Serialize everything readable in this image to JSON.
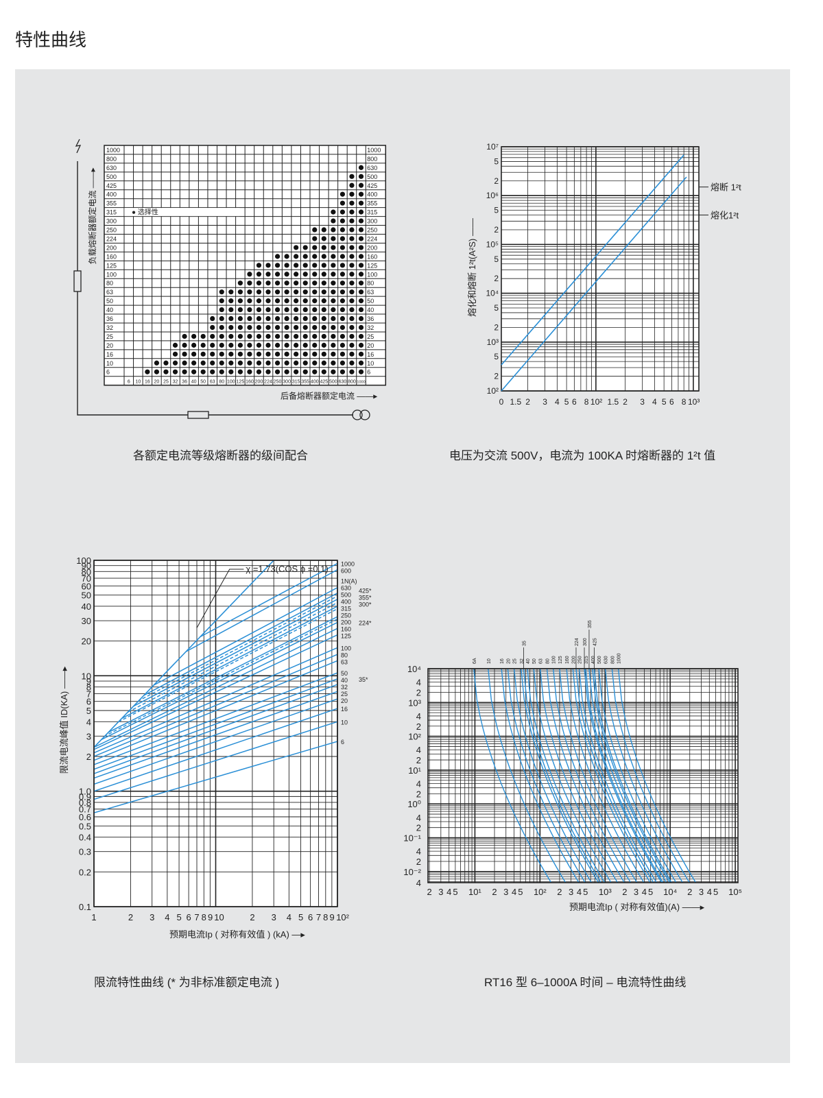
{
  "page_title": "特性曲线",
  "chart_data": [
    {
      "type": "table",
      "id": "selectivity",
      "caption": "各额定电流等级熔断器的级间配合",
      "ylabel": "负载熔断器额定电流",
      "xlabel": "后备熔断器额定电流",
      "legend": "● 选择性",
      "rows": [
        "1000",
        "800",
        "630",
        "500",
        "425",
        "400",
        "355",
        "315",
        "300",
        "250",
        "224",
        "200",
        "160",
        "125",
        "100",
        "80",
        "63",
        "50",
        "40",
        "36",
        "32",
        "25",
        "20",
        "16",
        "10",
        "6"
      ],
      "columns": [
        "6",
        "10",
        "16",
        "20",
        "25",
        "32",
        "36",
        "40",
        "50",
        "63",
        "80",
        "100",
        "125",
        "160",
        "200",
        "224",
        "250",
        "300",
        "315",
        "355",
        "400",
        "425",
        "500",
        "630",
        "800",
        "1000"
      ],
      "first_selective_column_per_row": [
        null,
        null,
        25,
        24,
        24,
        23,
        23,
        22,
        22,
        20,
        20,
        18,
        16,
        14,
        13,
        12,
        10,
        10,
        10,
        9,
        9,
        6,
        5,
        5,
        3,
        2
      ]
    },
    {
      "type": "line",
      "id": "i2t",
      "caption": "电压为交流 500V，电流为 100KA 时熔断器的 1²t 值",
      "ylabel": "熔化和熔断 1²t(A²S)",
      "xscale": "log",
      "yscale": "log",
      "xlim": [
        10.7,
        1140
      ],
      "ylim": [
        100,
        10000000
      ],
      "yticks": [
        {
          "v": 10000000,
          "t": "10⁷"
        },
        {
          "v": 5000000,
          "t": "5"
        },
        {
          "v": 2000000,
          "t": "2"
        },
        {
          "v": 1000000,
          "t": "10⁶"
        },
        {
          "v": 500000,
          "t": "5"
        },
        {
          "v": 200000,
          "t": "2"
        },
        {
          "v": 100000,
          "t": "10⁵"
        },
        {
          "v": 50000,
          "t": "5"
        },
        {
          "v": 20000,
          "t": "2"
        },
        {
          "v": 10000,
          "t": "10⁴"
        },
        {
          "v": 5000,
          "t": "5"
        },
        {
          "v": 2000,
          "t": "2"
        },
        {
          "v": 1000,
          "t": "10³"
        },
        {
          "v": 500,
          "t": "5"
        },
        {
          "v": 200,
          "t": "2"
        },
        {
          "v": 100,
          "t": "10²"
        }
      ],
      "xticks": [
        {
          "v": 10.7,
          "t": "0"
        },
        {
          "v": 15,
          "t": "1.5"
        },
        {
          "v": 20,
          "t": "2"
        },
        {
          "v": 30,
          "t": "3"
        },
        {
          "v": 40,
          "t": "4"
        },
        {
          "v": 50,
          "t": "5"
        },
        {
          "v": 60,
          "t": "6"
        },
        {
          "v": 80,
          "t": "8"
        },
        {
          "v": 100,
          "t": "10²"
        },
        {
          "v": 150,
          "t": "1.5"
        },
        {
          "v": 200,
          "t": "2"
        },
        {
          "v": 300,
          "t": "3"
        },
        {
          "v": 400,
          "t": "4"
        },
        {
          "v": 500,
          "t": "5"
        },
        {
          "v": 600,
          "t": "6"
        },
        {
          "v": 800,
          "t": "8"
        },
        {
          "v": 1000,
          "t": "10³"
        }
      ],
      "series": [
        {
          "name": "熔断 1²t",
          "x": [
            10.7,
            800
          ],
          "y": [
            340,
            6800000
          ],
          "label_y": 1500000
        },
        {
          "name": "熔化1²t",
          "x": [
            10.7,
            850
          ],
          "y": [
            100,
            2400000
          ],
          "label_y": 400000
        }
      ],
      "color": "#2a8fd6"
    },
    {
      "type": "line",
      "id": "cut_off",
      "caption": "限流特性曲线 (* 为非标准额定电流 )",
      "ylabel": "限流电流峰值 ID(KA)",
      "xlabel": "预期电流Ip ( 对称有效值 ) (kA)",
      "annotation": "χ =1.73(COS ϕ =0.1)",
      "xscale": "log",
      "yscale": "log",
      "xlim": [
        1,
        100
      ],
      "ylim": [
        0.1,
        100
      ],
      "yticks": [
        "100",
        "90",
        "80",
        "70",
        "60",
        "50",
        "40",
        "30",
        "20",
        "10",
        "9",
        "8",
        "7",
        "6",
        "5",
        "4",
        "3",
        "2",
        "1.0",
        "0.9",
        "0.8",
        "0.7",
        "0.6",
        "0.5",
        "0.4",
        "0.3",
        "0.2",
        "0.1"
      ],
      "ytick_values": [
        100,
        90,
        80,
        70,
        60,
        50,
        40,
        30,
        20,
        10,
        9,
        8,
        7,
        6,
        5,
        4,
        3,
        2,
        1,
        0.9,
        0.8,
        0.7,
        0.6,
        0.5,
        0.4,
        0.3,
        0.2,
        0.1
      ],
      "xticks": [
        "1",
        "2",
        "3",
        "4",
        "5",
        "6",
        "7",
        "8",
        "9",
        "10",
        "2",
        "3",
        "4",
        "5",
        "6",
        "7",
        "8",
        "9",
        "10²"
      ],
      "xtick_values": [
        1,
        2,
        3,
        4,
        5,
        6,
        7,
        8,
        9,
        10,
        20,
        30,
        40,
        50,
        60,
        70,
        80,
        90,
        100
      ],
      "envelope": {
        "x": [
          1,
          30
        ],
        "y": [
          2.4,
          100
        ]
      },
      "series": [
        {
          "name": "6",
          "y_start": 0.65,
          "y_end": 2.7
        },
        {
          "name": "10",
          "y_start": 0.85,
          "y_end": 4.0
        },
        {
          "name": "16",
          "y_start": 1.0,
          "y_end": 5.2
        },
        {
          "name": "20",
          "y_start": 1.15,
          "y_end": 6.3
        },
        {
          "name": "25",
          "y_start": 1.3,
          "y_end": 7.3
        },
        {
          "name": "32",
          "y_start": 1.42,
          "y_end": 8.4
        },
        {
          "name": "40",
          "y_start": 1.55,
          "y_end": 9.4
        },
        {
          "name": "50",
          "y_start": 1.7,
          "y_end": 10.6
        },
        {
          "name": "63",
          "y_start": 1.85,
          "y_end": 13.5
        },
        {
          "name": "80",
          "y_start": 2.0,
          "y_end": 15.3
        },
        {
          "name": "100",
          "y_start": 2.15,
          "y_end": 17.5
        },
        {
          "name": "125",
          "y_start": 2.3,
          "y_end": 22.6
        },
        {
          "name": "160",
          "y_start": 2.4,
          "y_end": 25.7
        },
        {
          "name": "200",
          "y_start": 2.6,
          "y_end": 29
        },
        {
          "name": "250",
          "y_start": 2.8,
          "y_end": 32.5
        },
        {
          "name": "315",
          "y_start": 3.2,
          "y_end": 40
        },
        {
          "name": "400",
          "y_start": 3.6,
          "y_end": 46
        },
        {
          "name": "500",
          "y_start": 4.0,
          "y_end": 52
        },
        {
          "name": "630",
          "y_start": 4.4,
          "y_end": 58
        },
        {
          "name": "600",
          "y_start": 6.0,
          "y_end": 83
        },
        {
          "name": "1000",
          "y_start": 7.0,
          "y_end": 94
        },
        {
          "name": "224*",
          "y_start": 2.7,
          "y_end": 31,
          "dashed": true
        },
        {
          "name": "300*",
          "y_start": 3.1,
          "y_end": 38,
          "dashed": true
        },
        {
          "name": "355*",
          "y_start": 3.4,
          "y_end": 43,
          "dashed": true
        },
        {
          "name": "425*",
          "y_start": 3.8,
          "y_end": 49,
          "dashed": true
        }
      ],
      "right_labels": [
        {
          "t": "1000",
          "v": 94
        },
        {
          "t": "600",
          "v": 83
        },
        {
          "t": "1N(A)",
          "v": 67
        },
        {
          "t": "630",
          "v": 60
        },
        {
          "t": "500",
          "v": 54
        },
        {
          "t": "400",
          "v": 48
        },
        {
          "t": "315",
          "v": 42
        },
        {
          "t": "250",
          "v": 34
        },
        {
          "t": "200",
          "v": 30
        },
        {
          "t": "160",
          "v": 26.5
        },
        {
          "t": "125",
          "v": 23
        },
        {
          "t": "100",
          "v": 17.5
        },
        {
          "t": "80",
          "v": 15.3
        },
        {
          "t": "63",
          "v": 13.5
        },
        {
          "t": "50",
          "v": 10.6
        },
        {
          "t": "40",
          "v": 9.4
        },
        {
          "t": "32",
          "v": 8.4
        },
        {
          "t": "25",
          "v": 7.3
        },
        {
          "t": "20",
          "v": 6.3
        },
        {
          "t": "16",
          "v": 5.2
        },
        {
          "t": "10",
          "v": 4.0
        },
        {
          "t": "6",
          "v": 2.7
        }
      ],
      "right_labels_2": [
        {
          "t": "425*",
          "v": 55
        },
        {
          "t": "355*",
          "v": 48
        },
        {
          "t": "300*",
          "v": 42
        },
        {
          "t": "224*",
          "v": 29
        },
        {
          "t": "35*",
          "v": 9.4
        }
      ],
      "color": "#2a8fd6"
    },
    {
      "type": "line",
      "id": "time_current",
      "caption": "RT16 型 6–1000A 时间 – 电流特性曲线",
      "xlabel": "预期电流Ip ( 对称有效值)(A)",
      "xscale": "log",
      "yscale": "log",
      "xlim": [
        1.9,
        110000
      ],
      "ylim": [
        0.0047,
        10000
      ],
      "yticks": [
        {
          "v": 10000,
          "t": "10⁴"
        },
        {
          "v": 4000,
          "t": "4"
        },
        {
          "v": 2000,
          "t": "2"
        },
        {
          "v": 1000,
          "t": "10³"
        },
        {
          "v": 400,
          "t": "4"
        },
        {
          "v": 200,
          "t": "2"
        },
        {
          "v": 100,
          "t": "10²"
        },
        {
          "v": 40,
          "t": "4"
        },
        {
          "v": 20,
          "t": "2"
        },
        {
          "v": 10,
          "t": "10¹"
        },
        {
          "v": 4,
          "t": "4"
        },
        {
          "v": 2,
          "t": "2"
        },
        {
          "v": 1,
          "t": "10⁰"
        },
        {
          "v": 0.4,
          "t": "4"
        },
        {
          "v": 0.2,
          "t": "2"
        },
        {
          "v": 0.1,
          "t": "10⁻¹"
        },
        {
          "v": 0.04,
          "t": "4"
        },
        {
          "v": 0.02,
          "t": "2"
        },
        {
          "v": 0.01,
          "t": "10⁻²"
        },
        {
          "v": 0.0047,
          "t": "4"
        }
      ],
      "xticks": [
        {
          "v": 2,
          "t": "2"
        },
        {
          "v": 3,
          "t": "3"
        },
        {
          "v": 4,
          "t": "4"
        },
        {
          "v": 5,
          "t": "5"
        },
        {
          "v": 10,
          "t": "10¹"
        },
        {
          "v": 20,
          "t": "2"
        },
        {
          "v": 30,
          "t": "3"
        },
        {
          "v": 40,
          "t": "4"
        },
        {
          "v": 50,
          "t": "5"
        },
        {
          "v": 100,
          "t": "10²"
        },
        {
          "v": 200,
          "t": "2"
        },
        {
          "v": 300,
          "t": "3"
        },
        {
          "v": 400,
          "t": "4"
        },
        {
          "v": 500,
          "t": "5"
        },
        {
          "v": 1000,
          "t": "10³"
        },
        {
          "v": 2000,
          "t": "2"
        },
        {
          "v": 3000,
          "t": "3"
        },
        {
          "v": 4000,
          "t": "4"
        },
        {
          "v": 5000,
          "t": "5"
        },
        {
          "v": 10000,
          "t": "10⁴"
        },
        {
          "v": 20000,
          "t": "2"
        },
        {
          "v": 30000,
          "t": "3"
        },
        {
          "v": 40000,
          "t": "4"
        },
        {
          "v": 50000,
          "t": "5"
        },
        {
          "v": 100000,
          "t": "10⁵"
        }
      ],
      "ratings": [
        "6A",
        "10",
        "16",
        "20",
        "25",
        "32",
        "35",
        "40",
        "50",
        "63",
        "80",
        "100",
        "125",
        "160",
        "200",
        "224",
        "250",
        "300",
        "315",
        "355",
        "400",
        "425",
        "500",
        "630",
        "800",
        "1000"
      ],
      "rating_values": [
        6,
        10,
        16,
        20,
        25,
        32,
        35,
        40,
        50,
        63,
        80,
        100,
        125,
        160,
        200,
        224,
        250,
        300,
        315,
        355,
        400,
        425,
        500,
        630,
        800,
        1000
      ],
      "color": "#2a8fd6"
    }
  ]
}
